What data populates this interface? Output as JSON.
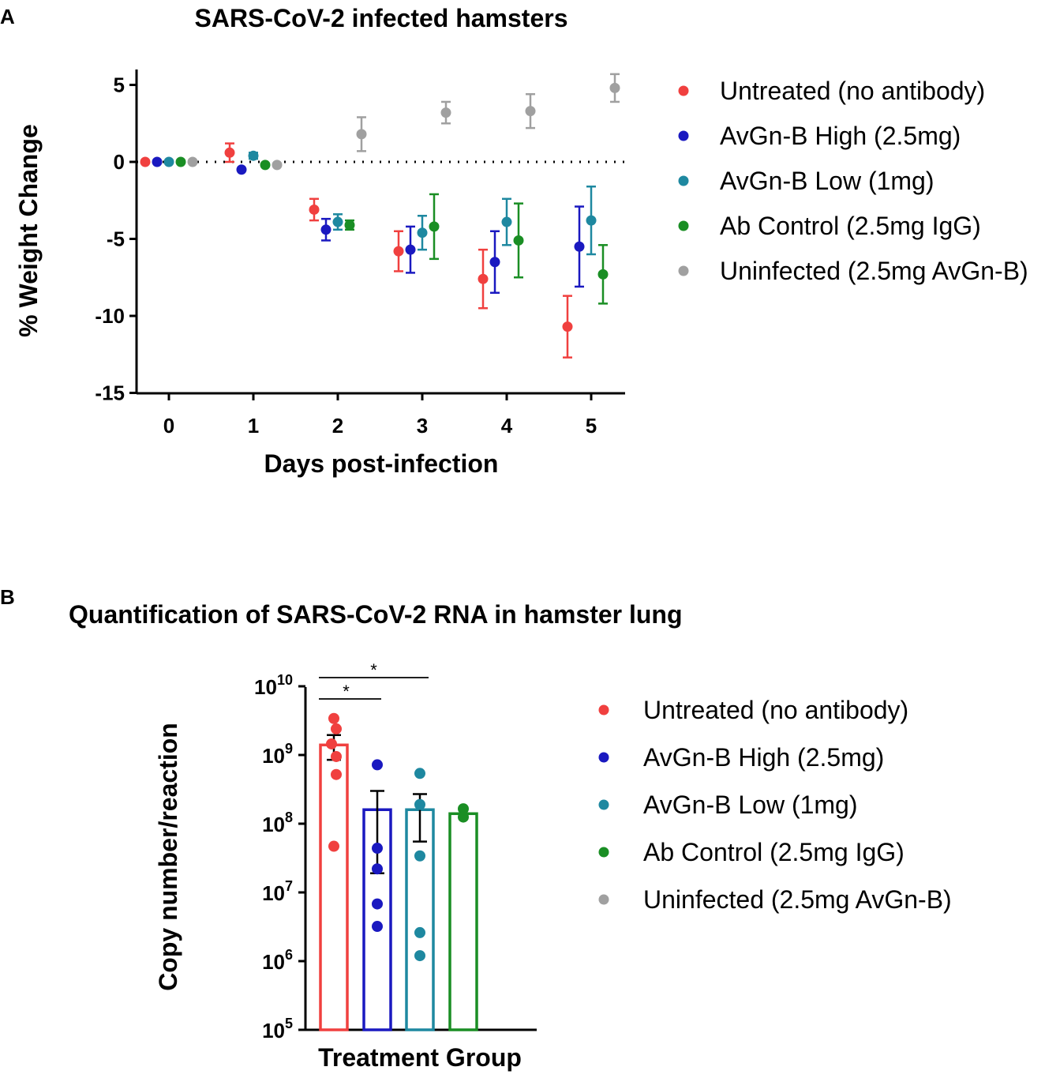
{
  "colors": {
    "untreated": "#f0403f",
    "high": "#1a19c0",
    "low": "#1e88a0",
    "control": "#1a8e24",
    "uninfected": "#a0a0a0"
  },
  "chart_data": [
    {
      "panel": "A",
      "type": "scatter",
      "title": "SARS-CoV-2 infected hamsters",
      "xlabel": "Days post-infection",
      "ylabel": "% Weight Change",
      "x": [
        0,
        1,
        2,
        3,
        4,
        5
      ],
      "x_ticks": [
        "0",
        "1",
        "2",
        "3",
        "4",
        "5"
      ],
      "y_ticks": [
        "5",
        "0",
        "-5",
        "-10",
        "-15"
      ],
      "ylim": [
        -15,
        6
      ],
      "reference_line": 0,
      "series": [
        {
          "name": "Untreated (no antibody)",
          "key": "untreated",
          "values": [
            0,
            0.6,
            -3.1,
            -5.8,
            -7.6,
            -10.7
          ],
          "errors": [
            0,
            0.6,
            0.7,
            1.3,
            1.9,
            2.0
          ]
        },
        {
          "name": "AvGn-B High (2.5mg)",
          "key": "high",
          "values": [
            0,
            -0.5,
            -4.4,
            -5.7,
            -6.5,
            -5.5
          ],
          "errors": [
            0,
            0,
            0.7,
            1.5,
            2.0,
            2.6
          ]
        },
        {
          "name": "AvGn-B  Low (1mg)",
          "key": "low",
          "values": [
            0,
            0.4,
            -3.9,
            -4.6,
            -3.9,
            -3.8
          ],
          "errors": [
            0,
            0.2,
            0.5,
            1.1,
            1.5,
            2.2
          ]
        },
        {
          "name": "Ab Control (2.5mg IgG)",
          "key": "control",
          "values": [
            0,
            -0.2,
            -4.1,
            -4.2,
            -5.1,
            -7.3
          ],
          "errors": [
            0,
            0,
            0.3,
            2.1,
            2.4,
            1.9
          ]
        },
        {
          "name": "Uninfected (2.5mg AvGn-B)",
          "key": "uninfected",
          "values": [
            0,
            -0.2,
            1.8,
            3.2,
            3.3,
            4.8
          ],
          "errors": [
            0,
            0,
            1.1,
            0.7,
            1.1,
            0.9
          ]
        }
      ]
    },
    {
      "panel": "B",
      "type": "bar",
      "title": "Quantification of  SARS-CoV-2  RNA in hamster lung",
      "xlabel": "Treatment Group",
      "ylabel": "Copy number/reaction",
      "y_scale": "log10",
      "ylim_exp": [
        5,
        10
      ],
      "y_tick_base": "10",
      "y_tick_exps": [
        "10",
        "9",
        "8",
        "7",
        "6",
        "5"
      ],
      "significance": [
        {
          "from": "Untreated (no antibody)",
          "to": "AvGn-B High (2.5mg)",
          "label": "*"
        },
        {
          "from": "Untreated (no antibody)",
          "to": "AvGn-B Low (1mg)",
          "label": "*"
        }
      ],
      "groups": [
        {
          "name": "Untreated (no antibody)",
          "key": "untreated",
          "mean": 1400000000.0,
          "sem_low": 850000000.0,
          "sem_high": 1950000000.0,
          "points": [
            3400000000.0,
            2400000000.0,
            1450000000.0,
            950000000.0,
            520000000.0,
            47000000.0
          ]
        },
        {
          "name": "AvGn-B High (2.5mg)",
          "key": "high",
          "mean": 160000000.0,
          "sem_low": 19000000.0,
          "sem_high": 300000000.0,
          "points": [
            720000000.0,
            44000000.0,
            22000000.0,
            6800000.0,
            3200000.0
          ]
        },
        {
          "name": "AvGn-B Low (1mg)",
          "key": "low",
          "mean": 160000000.0,
          "sem_low": 55000000.0,
          "sem_high": 270000000.0,
          "points": [
            540000000.0,
            190000000.0,
            34000000.0,
            2600000.0,
            1200000.0
          ]
        },
        {
          "name": "Ab Control (2.5mg  IgG)",
          "key": "control",
          "mean": 140000000.0,
          "sem_low": 140000000.0,
          "sem_high": 140000000.0,
          "points": [
            165000000.0,
            125000000.0
          ]
        },
        {
          "name": "Uninfected (2.5mg AvGn-B)",
          "key": "uninfected",
          "mean": null,
          "points": []
        }
      ]
    }
  ]
}
